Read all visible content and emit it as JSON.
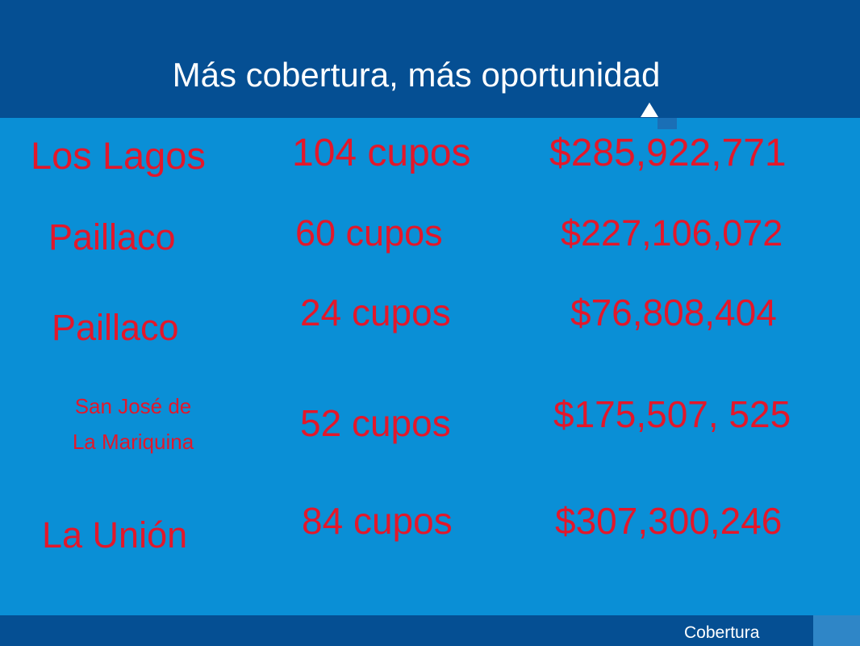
{
  "title": "Más cobertura, más oportunidad",
  "rows": [
    {
      "place": "Los Lagos",
      "cupos": "104 cupos",
      "amount": "$285,922,771"
    },
    {
      "place": "Paillaco",
      "cupos": "60 cupos",
      "amount": "$227,106,072"
    },
    {
      "place": "Paillaco",
      "cupos": "24 cupos",
      "amount": "$76,808,404"
    },
    {
      "place_line1": "San José de",
      "place_line2": "La Mariquina",
      "cupos": "52 cupos",
      "amount": "$175,507, 525"
    },
    {
      "place": "La Unión",
      "cupos": "84 cupos",
      "amount": "$307,300,246"
    }
  ],
  "footer": {
    "label": "Cobertura"
  },
  "colors": {
    "header": "#054f93",
    "background": "#0a8fd6",
    "text": "#e3172a"
  }
}
